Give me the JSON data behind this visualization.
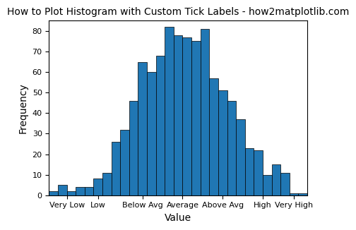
{
  "title": "How to Plot Histogram with Custom Tick Labels - how2matplotlib.com",
  "xlabel": "Value",
  "ylabel": "Frequency",
  "bar_color": "#2077b4",
  "bar_edgecolor": "black",
  "bar_linewidth": 0.5,
  "ylim": [
    0,
    85
  ],
  "yticks": [
    0,
    10,
    20,
    30,
    40,
    50,
    60,
    70,
    80
  ],
  "bar_heights": [
    2,
    5,
    2,
    4,
    4,
    8,
    11,
    26,
    32,
    46,
    65,
    60,
    68,
    82,
    78,
    77,
    75,
    81,
    57,
    51,
    46,
    37,
    23,
    22,
    10,
    15,
    11,
    1,
    1
  ],
  "num_bars": 29,
  "tick_labels": [
    "Very Low",
    "Low",
    "Below Avg",
    "Average",
    "Above Avg",
    "High",
    "Very High"
  ],
  "tick_label_positions": [
    1.5,
    5.0,
    10.0,
    14.5,
    19.0,
    23.5,
    27.0
  ],
  "background_color": "#ffffff",
  "title_fontsize": 10,
  "label_fontsize": 10,
  "tick_fontsize": 8
}
